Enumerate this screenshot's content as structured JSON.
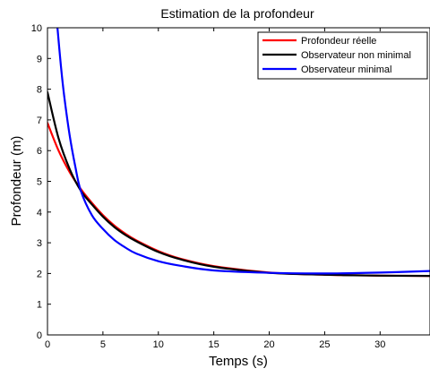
{
  "chart_data": {
    "type": "line",
    "title": "Estimation de la profondeur",
    "xlabel": "Temps (s)",
    "ylabel": "Profondeur (m)",
    "xlim": [
      0,
      34.5
    ],
    "ylim": [
      0,
      10
    ],
    "xticks": [
      0,
      5,
      10,
      15,
      20,
      25,
      30
    ],
    "yticks": [
      0,
      1,
      2,
      3,
      4,
      5,
      6,
      7,
      8,
      9,
      10
    ],
    "grid": false,
    "legend_position": "top-right",
    "series": [
      {
        "name": "Profondeur réelle",
        "color": "#ff0000",
        "x": [
          0,
          1,
          2,
          3,
          4,
          5,
          6,
          7,
          8,
          10,
          12,
          15,
          20,
          25,
          30,
          34.5
        ],
        "y": [
          6.9,
          6.0,
          5.3,
          4.75,
          4.3,
          3.9,
          3.57,
          3.3,
          3.08,
          2.73,
          2.48,
          2.24,
          2.03,
          1.96,
          1.93,
          1.92
        ]
      },
      {
        "name": "Observateur non minimal",
        "color": "#000000",
        "x": [
          0,
          1,
          2,
          3,
          4,
          5,
          6,
          7,
          8,
          10,
          12,
          15,
          20,
          25,
          30,
          34.5
        ],
        "y": [
          7.9,
          6.4,
          5.4,
          4.7,
          4.25,
          3.85,
          3.52,
          3.26,
          3.05,
          2.7,
          2.46,
          2.22,
          2.02,
          1.96,
          1.93,
          1.92
        ]
      },
      {
        "name": "Observateur minimal",
        "color": "#0000ff",
        "x": [
          0.9,
          1.2,
          1.5,
          2,
          2.5,
          3,
          4,
          5,
          6,
          7,
          8,
          10,
          12,
          15,
          20,
          25,
          30,
          34.5
        ],
        "y": [
          10,
          8.8,
          7.8,
          6.5,
          5.5,
          4.7,
          3.9,
          3.45,
          3.1,
          2.85,
          2.65,
          2.4,
          2.25,
          2.1,
          2.02,
          2.0,
          2.03,
          2.08
        ]
      }
    ]
  }
}
